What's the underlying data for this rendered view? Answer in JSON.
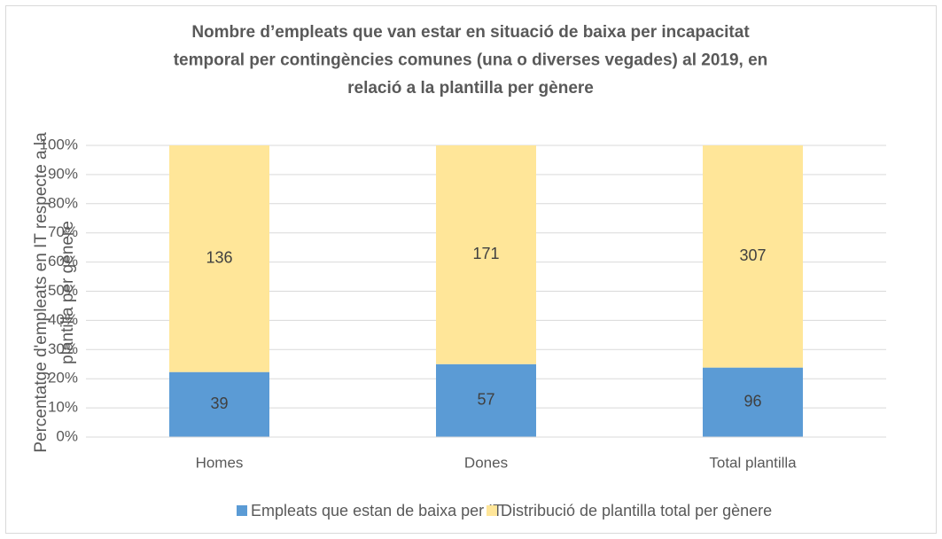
{
  "chart_data": {
    "type": "bar",
    "stacking": "percent",
    "title": [
      "Nombre d’empleats que van estar en situació de baixa per incapacitat",
      "temporal per contingències comunes (una o diverses vegades) al 2019, en",
      "relació a la plantilla per gènere"
    ],
    "y_label": [
      "Percentatge d'empleats en IT respecte a la",
      "plantilla per gènere"
    ],
    "categories": [
      "Homes",
      "Dones",
      "Total plantilla"
    ],
    "series": [
      {
        "name": "Empleats que estan de baixa per IT",
        "color": "#5b9bd5",
        "values": [
          39,
          57,
          96
        ]
      },
      {
        "name": "Distribució de plantilla total per gènere",
        "color": "#ffe699",
        "values": [
          136,
          171,
          307
        ]
      }
    ],
    "ylim": [
      0,
      100
    ],
    "yticks": [
      {
        "value": 0,
        "label": "0%"
      },
      {
        "value": 10,
        "label": "10%"
      },
      {
        "value": 20,
        "label": "20%"
      },
      {
        "value": 30,
        "label": "30%"
      },
      {
        "value": 40,
        "label": "40%"
      },
      {
        "value": 50,
        "label": "50%"
      },
      {
        "value": 60,
        "label": "60%"
      },
      {
        "value": 70,
        "label": "70%"
      },
      {
        "value": 80,
        "label": "80%"
      },
      {
        "value": 90,
        "label": "90%"
      },
      {
        "value": 100,
        "label": "100%"
      }
    ],
    "grid": true,
    "legend": "bottom"
  }
}
